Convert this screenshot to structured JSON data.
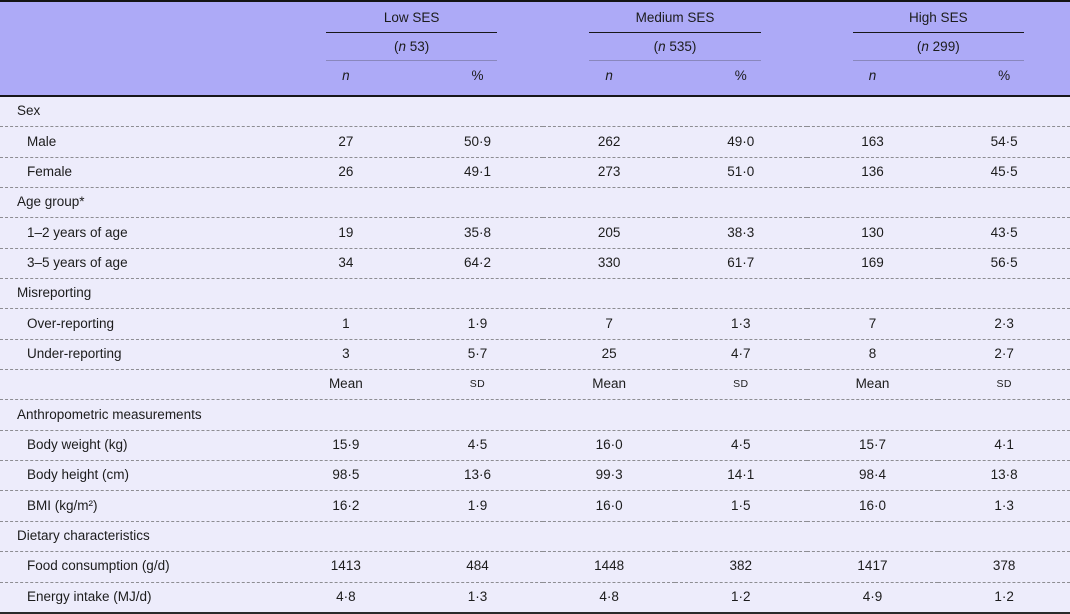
{
  "colors": {
    "header_bg": "#adaaf7",
    "body_bg": "#edecfb",
    "rule_dark": "#17171a",
    "rule_dashed": "#8d8d92"
  },
  "table": {
    "groups": [
      {
        "name": "Low SES",
        "paren_open": "(",
        "n_symbol": "n",
        "count_rest": " 53)"
      },
      {
        "name": "Medium SES",
        "paren_open": "(",
        "n_symbol": "n",
        "count_rest": " 535)"
      },
      {
        "name": "High SES",
        "paren_open": "(",
        "n_symbol": "n",
        "count_rest": " 299)"
      }
    ],
    "col_headers": {
      "n": "n",
      "pct": "%"
    },
    "rows": [
      {
        "type": "section",
        "label": "Sex"
      },
      {
        "type": "data",
        "label": "Male",
        "values": [
          "27",
          "50·9",
          "262",
          "49·0",
          "163",
          "54·5"
        ]
      },
      {
        "type": "data",
        "label": "Female",
        "values": [
          "26",
          "49·1",
          "273",
          "51·0",
          "136",
          "45·5"
        ]
      },
      {
        "type": "section",
        "label": "Age group*"
      },
      {
        "type": "data",
        "label": "1–2 years of age",
        "values": [
          "19",
          "35·8",
          "205",
          "38·3",
          "130",
          "43·5"
        ]
      },
      {
        "type": "data",
        "label": "3–5 years of age",
        "values": [
          "34",
          "64·2",
          "330",
          "61·7",
          "169",
          "56·5"
        ]
      },
      {
        "type": "section",
        "label": "Misreporting"
      },
      {
        "type": "data",
        "label": "Over-reporting",
        "values": [
          "1",
          "1·9",
          "7",
          "1·3",
          "7",
          "2·3"
        ]
      },
      {
        "type": "data",
        "label": "Under-reporting",
        "values": [
          "3",
          "5·7",
          "25",
          "4·7",
          "8",
          "2·7"
        ]
      },
      {
        "type": "subheader",
        "label": "",
        "values": [
          "Mean",
          "SD",
          "Mean",
          "SD",
          "Mean",
          "SD"
        ]
      },
      {
        "type": "section",
        "label": "Anthropometric measurements"
      },
      {
        "type": "data",
        "label": "Body weight (kg)",
        "values": [
          "15·9",
          "4·5",
          "16·0",
          "4·5",
          "15·7",
          "4·1"
        ]
      },
      {
        "type": "data",
        "label": "Body height (cm)",
        "values": [
          "98·5",
          "13·6",
          "99·3",
          "14·1",
          "98·4",
          "13·8"
        ]
      },
      {
        "type": "data",
        "label": "BMI (kg/m²)",
        "values": [
          "16·2",
          "1·9",
          "16·0",
          "1·5",
          "16·0",
          "1·3"
        ]
      },
      {
        "type": "section",
        "label": "Dietary characteristics"
      },
      {
        "type": "data",
        "label": "Food consumption (g/d)",
        "values": [
          "1413",
          "484",
          "1448",
          "382",
          "1417",
          "378"
        ]
      },
      {
        "type": "data",
        "label": "Energy intake (MJ/d)",
        "values": [
          "4·8",
          "1·3",
          "4·8",
          "1·2",
          "4·9",
          "1·2"
        ]
      }
    ]
  }
}
